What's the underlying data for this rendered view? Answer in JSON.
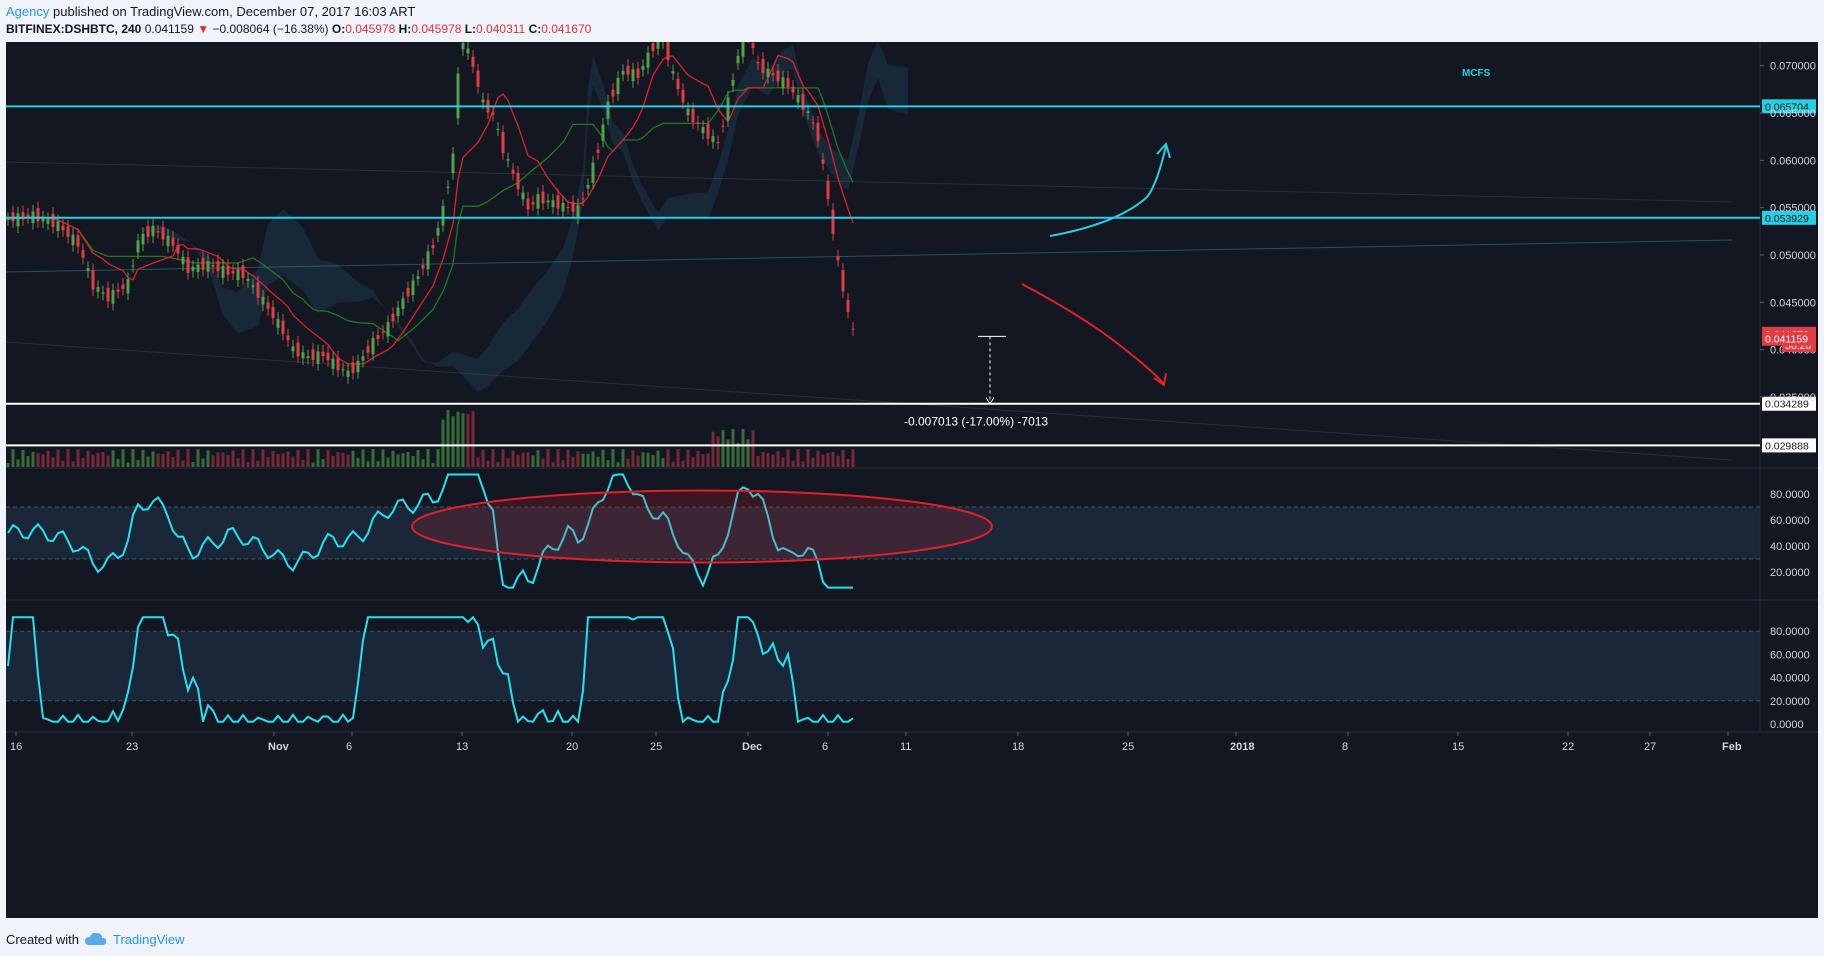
{
  "header": {
    "author": "Agency",
    "published_text": "published on TradingView.com, December 07, 2017 16:03 ART"
  },
  "symbol_bar": {
    "symbol": "BITFINEX:DSHBTC, 240",
    "last": "0.041159",
    "change": "−0.008064 (−16.38%)",
    "o_label": "O:",
    "o": "0.045978",
    "h_label": "H:",
    "h": "0.045978",
    "l_label": "L:",
    "l": "0.040311",
    "c_label": "C:",
    "c": "0.041670"
  },
  "chart_data": {
    "type": "candlestick",
    "symbol": "BITFINEX:DSHBTC",
    "interval": "240",
    "colors": {
      "background": "#131722",
      "up": "#53a14a",
      "down": "#e23c44",
      "tenkan": "#e0202a",
      "kijun": "#1e7a1e",
      "levels": "#26d0e0",
      "oscillator": "#26e0f0"
    },
    "price_axis": {
      "min": 0.0275,
      "max": 0.0725,
      "ticks": [
        "0.070000",
        "0.065000",
        "0.060000",
        "0.055000",
        "0.050000",
        "0.045000",
        "0.040000",
        "0.035000"
      ]
    },
    "time_axis": {
      "labels": [
        "16",
        "23",
        "Nov",
        "6",
        "13",
        "20",
        "25",
        "Dec",
        "6",
        "11",
        "18",
        "25",
        "2018",
        "8",
        "15",
        "22",
        "27",
        "Feb"
      ]
    },
    "watermark": "MCFS",
    "horizontal_levels": [
      {
        "price": 0.065704,
        "label": "0.065704",
        "color": "#26d0e0"
      },
      {
        "price": 0.053929,
        "label": "0.053929",
        "color": "#26d0e0"
      },
      {
        "price": 0.034289,
        "label": "0.034289",
        "color": "#ffffff"
      },
      {
        "price": 0.029888,
        "label": "0.029888",
        "color": "#ffffff"
      }
    ],
    "price_badges": [
      {
        "label": "0.041670",
        "price": 0.04167
      },
      {
        "label": "56:26",
        "price": 0.0405
      },
      {
        "label": "0.041159",
        "price": 0.04116
      }
    ],
    "measure": {
      "from": 0.0414,
      "to": 0.0343,
      "label": "-0.007013 (-17.00%) -7013"
    },
    "price_path": [
      [
        0,
        0.0538
      ],
      [
        5,
        0.0542
      ],
      [
        10,
        0.0532
      ],
      [
        14,
        0.0512
      ],
      [
        17,
        0.0468
      ],
      [
        20,
        0.0455
      ],
      [
        24,
        0.047
      ],
      [
        26,
        0.0515
      ],
      [
        29,
        0.0528
      ],
      [
        33,
        0.0512
      ],
      [
        36,
        0.0485
      ],
      [
        40,
        0.049
      ],
      [
        44,
        0.0482
      ],
      [
        47,
        0.048
      ],
      [
        51,
        0.0452
      ],
      [
        55,
        0.042
      ],
      [
        57,
        0.04
      ],
      [
        60,
        0.0392
      ],
      [
        63,
        0.0395
      ],
      [
        66,
        0.0382
      ],
      [
        68,
        0.0375
      ],
      [
        70,
        0.0385
      ],
      [
        73,
        0.0408
      ],
      [
        76,
        0.0425
      ],
      [
        79,
        0.0452
      ],
      [
        82,
        0.0478
      ],
      [
        85,
        0.051
      ],
      [
        87,
        0.0548
      ],
      [
        89,
        0.0605
      ],
      [
        90,
        0.069
      ],
      [
        91,
        0.0728
      ],
      [
        93,
        0.07
      ],
      [
        95,
        0.066
      ],
      [
        97,
        0.0648
      ],
      [
        99,
        0.0612
      ],
      [
        101,
        0.0585
      ],
      [
        104,
        0.055
      ],
      [
        106,
        0.056
      ],
      [
        109,
        0.0555
      ],
      [
        112,
        0.055
      ],
      [
        114,
        0.0548
      ],
      [
        116,
        0.0575
      ],
      [
        118,
        0.0612
      ],
      [
        120,
        0.066
      ],
      [
        123,
        0.0695
      ],
      [
        126,
        0.069
      ],
      [
        129,
        0.072
      ],
      [
        131,
        0.073
      ],
      [
        133,
        0.069
      ],
      [
        136,
        0.065
      ],
      [
        139,
        0.0632
      ],
      [
        142,
        0.0618
      ],
      [
        144,
        0.0662
      ],
      [
        146,
        0.0712
      ],
      [
        148,
        0.0735
      ],
      [
        150,
        0.07
      ],
      [
        153,
        0.069
      ],
      [
        156,
        0.068
      ],
      [
        158,
        0.0665
      ],
      [
        160,
        0.065
      ],
      [
        162,
        0.0625
      ],
      [
        164,
        0.056
      ],
      [
        166,
        0.049
      ],
      [
        168,
        0.044
      ],
      [
        169,
        0.0418
      ]
    ],
    "rsi": {
      "ticks": [
        "80.0000",
        "60.0000",
        "40.0000",
        "20.0000"
      ],
      "band": [
        30,
        70
      ]
    },
    "stoch": {
      "ticks": [
        "80.0000",
        "60.0000",
        "40.0000",
        "20.0000",
        "0.0000"
      ],
      "band": [
        20,
        80
      ]
    }
  },
  "footer": {
    "created_with": "Created with",
    "tradingview": "TradingView"
  }
}
